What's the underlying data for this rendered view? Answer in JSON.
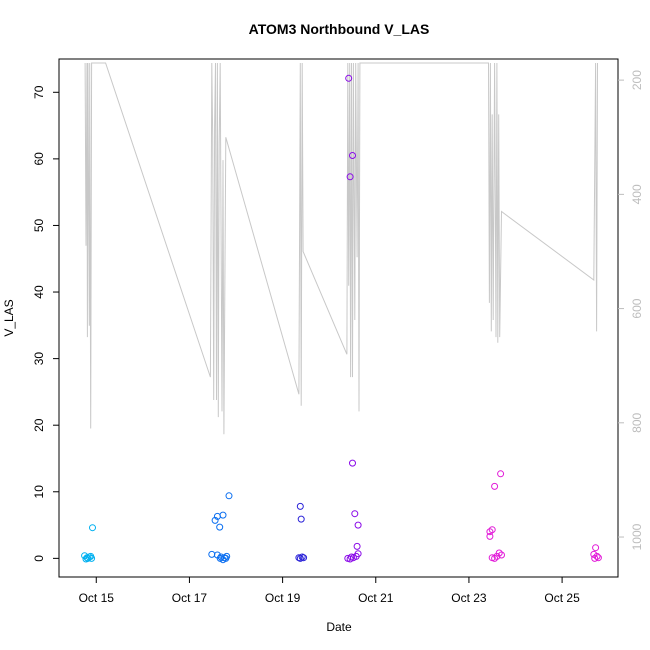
{
  "chart_data": {
    "type": "scatter",
    "title": "ATOM3 Northbound V_LAS",
    "xlabel": "Date",
    "ylabel": "V_LAS",
    "x_ticks": [
      "Oct 15",
      "Oct 17",
      "Oct 19",
      "Oct 21",
      "Oct 23",
      "Oct 25"
    ],
    "x_tick_days": [
      15,
      17,
      19,
      21,
      23,
      25
    ],
    "xlim": [
      14.2,
      26.2
    ],
    "ylim": [
      -2.8,
      75
    ],
    "y_ticks": [
      0,
      10,
      20,
      30,
      40,
      50,
      60,
      70
    ],
    "y2_ticks": [
      200,
      400,
      600,
      800,
      1000
    ],
    "y2lim": [
      1070,
      163
    ],
    "grid": false,
    "legend": "none",
    "colors": {
      "series_points": [
        "#00b0f0",
        "#0a6ef0",
        "#2a22d8",
        "#8a0ae8",
        "#e21ad8"
      ],
      "secondary_line": "#c8c8c8",
      "axis": "#000000",
      "right_axis": "#bdbdbd"
    },
    "series": [
      {
        "color": "#00b0f0",
        "points": [
          [
            14.75,
            0.4
          ],
          [
            14.8,
            0.1
          ],
          [
            14.85,
            0.2
          ],
          [
            14.9,
            0.0
          ],
          [
            14.78,
            -0.1
          ],
          [
            14.92,
            4.6
          ],
          [
            14.88,
            0.3
          ],
          [
            14.82,
            0.0
          ]
        ]
      },
      {
        "color": "#0a6ef0",
        "points": [
          [
            17.48,
            0.6
          ],
          [
            17.55,
            5.7
          ],
          [
            17.6,
            6.3
          ],
          [
            17.65,
            4.7
          ],
          [
            17.72,
            6.5
          ],
          [
            17.85,
            9.4
          ],
          [
            17.6,
            0.5
          ],
          [
            17.68,
            0.2
          ],
          [
            17.75,
            0.1
          ],
          [
            17.8,
            0.3
          ],
          [
            17.66,
            0.0
          ],
          [
            17.72,
            -0.2
          ],
          [
            17.78,
            0.0
          ]
        ]
      },
      {
        "color": "#2a22d8",
        "points": [
          [
            19.38,
            7.8
          ],
          [
            19.4,
            5.9
          ],
          [
            19.35,
            0.1
          ],
          [
            19.42,
            0.2
          ],
          [
            19.38,
            0.0
          ],
          [
            19.45,
            0.1
          ]
        ]
      },
      {
        "color": "#8a0ae8",
        "points": [
          [
            20.42,
            72.1
          ],
          [
            20.5,
            60.5
          ],
          [
            20.45,
            57.3
          ],
          [
            20.5,
            14.3
          ],
          [
            20.55,
            6.7
          ],
          [
            20.62,
            5.0
          ],
          [
            20.6,
            1.8
          ],
          [
            20.62,
            0.7
          ],
          [
            20.4,
            0.0
          ],
          [
            20.48,
            0.2
          ],
          [
            20.52,
            0.1
          ],
          [
            20.58,
            0.3
          ],
          [
            20.45,
            -0.1
          ]
        ]
      },
      {
        "color": "#e21ad8",
        "points": [
          [
            23.45,
            4.0
          ],
          [
            23.5,
            4.3
          ],
          [
            23.45,
            3.3
          ],
          [
            23.55,
            10.8
          ],
          [
            23.68,
            12.7
          ],
          [
            23.5,
            0.1
          ],
          [
            23.6,
            0.3
          ],
          [
            23.65,
            0.8
          ],
          [
            23.7,
            0.5
          ],
          [
            23.55,
            0.0
          ],
          [
            25.72,
            1.6
          ],
          [
            25.68,
            0.6
          ],
          [
            25.75,
            0.3
          ],
          [
            25.78,
            0.1
          ],
          [
            25.7,
            0.0
          ]
        ]
      }
    ],
    "secondary_line": {
      "axis": "right",
      "points": [
        [
          14.76,
          170
        ],
        [
          14.78,
          490
        ],
        [
          14.8,
          170
        ],
        [
          14.81,
          650
        ],
        [
          14.82,
          170
        ],
        [
          14.85,
          630
        ],
        [
          14.86,
          170
        ],
        [
          14.88,
          810
        ],
        [
          14.9,
          170
        ],
        [
          15.2,
          170
        ],
        [
          17.45,
          720
        ],
        [
          17.48,
          170
        ],
        [
          17.5,
          300
        ],
        [
          17.52,
          760
        ],
        [
          17.54,
          280
        ],
        [
          17.56,
          170
        ],
        [
          17.58,
          760
        ],
        [
          17.6,
          170
        ],
        [
          17.62,
          790
        ],
        [
          17.64,
          310
        ],
        [
          17.66,
          170
        ],
        [
          17.7,
          780
        ],
        [
          17.72,
          340
        ],
        [
          17.74,
          820
        ],
        [
          17.78,
          300
        ],
        [
          19.35,
          750
        ],
        [
          19.38,
          170
        ],
        [
          19.4,
          770
        ],
        [
          19.42,
          170
        ],
        [
          19.44,
          500
        ],
        [
          20.38,
          680
        ],
        [
          20.4,
          170
        ],
        [
          20.42,
          560
        ],
        [
          20.44,
          170
        ],
        [
          20.46,
          720
        ],
        [
          20.48,
          170
        ],
        [
          20.5,
          720
        ],
        [
          20.52,
          170
        ],
        [
          20.55,
          620
        ],
        [
          20.57,
          170
        ],
        [
          20.6,
          510
        ],
        [
          20.62,
          170
        ],
        [
          20.64,
          780
        ],
        [
          20.66,
          170
        ],
        [
          23.42,
          170
        ],
        [
          23.44,
          590
        ],
        [
          23.46,
          170
        ],
        [
          23.48,
          640
        ],
        [
          23.5,
          260
        ],
        [
          23.52,
          620
        ],
        [
          23.55,
          170
        ],
        [
          23.58,
          650
        ],
        [
          23.6,
          170
        ],
        [
          23.62,
          660
        ],
        [
          23.64,
          260
        ],
        [
          23.66,
          650
        ],
        [
          23.7,
          430
        ],
        [
          25.68,
          550
        ],
        [
          25.72,
          170
        ],
        [
          25.74,
          640
        ],
        [
          25.76,
          170
        ]
      ]
    }
  }
}
